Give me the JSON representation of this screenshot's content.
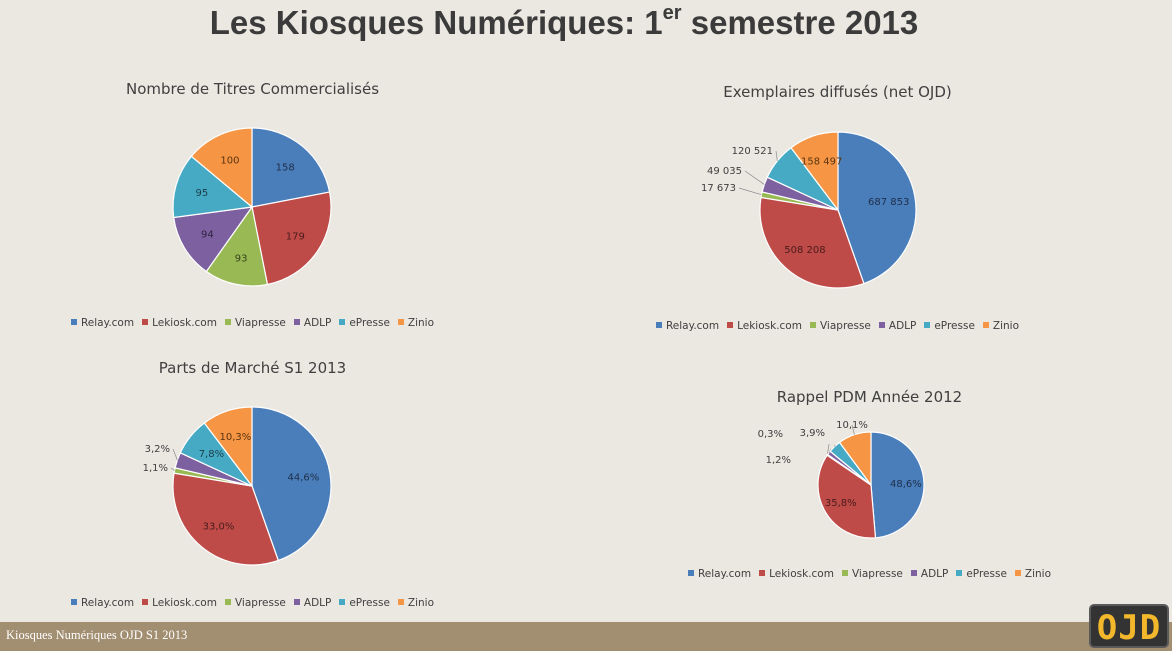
{
  "page": {
    "title_main": "Les Kiosques Numériques: 1",
    "title_sup": "er",
    "title_end": " semestre 2013",
    "footer": "Kiosques Numériques OJD S1 2013",
    "logo": "OJD"
  },
  "colors": {
    "Relay.com": "#4a7ebb",
    "Lekiosk.com": "#be4b48",
    "Viapresse": "#98b954",
    "ADLP": "#7d60a0",
    "ePresse": "#46aac5",
    "Zinio": "#f69544"
  },
  "chart_data": [
    {
      "type": "pie",
      "title": "Nombre de Titres Commercialisés",
      "categories": [
        "Relay.com",
        "Lekiosk.com",
        "Viapresse",
        "ADLP",
        "ePresse",
        "Zinio"
      ],
      "values": [
        158,
        179,
        93,
        94,
        95,
        100
      ],
      "labels": [
        "158",
        "179",
        "93",
        "94",
        "95",
        "100"
      ],
      "legend": "bottom"
    },
    {
      "type": "pie",
      "title": "Exemplaires diffusés (net OJD)",
      "categories": [
        "Relay.com",
        "Lekiosk.com",
        "Viapresse",
        "ADLP",
        "ePresse",
        "Zinio"
      ],
      "values": [
        687853,
        508208,
        17673,
        49035,
        120521,
        158497
      ],
      "labels": [
        "687 853",
        "508 208",
        "17 673",
        "49 035",
        "120 521",
        "158 497"
      ],
      "legend": "bottom"
    },
    {
      "type": "pie",
      "title": "Parts de Marché S1 2013",
      "categories": [
        "Relay.com",
        "Lekiosk.com",
        "Viapresse",
        "ADLP",
        "ePresse",
        "Zinio"
      ],
      "values": [
        44.6,
        33.0,
        1.1,
        3.2,
        7.8,
        10.3
      ],
      "labels": [
        "44,6%",
        "33,0%",
        "1,1%",
        "3,2%",
        "7,8%",
        "10,3%"
      ],
      "legend": "bottom"
    },
    {
      "type": "pie",
      "title": "Rappel PDM Année 2012",
      "categories": [
        "Relay.com",
        "Lekiosk.com",
        "Viapresse",
        "ADLP",
        "ePresse",
        "Zinio"
      ],
      "values": [
        48.6,
        35.8,
        0.3,
        1.2,
        3.9,
        10.1
      ],
      "labels": [
        "48,6%",
        "35,8%",
        "0,3%",
        "1,2%",
        "3,9%",
        "10,1%"
      ],
      "legend": "bottom"
    }
  ]
}
